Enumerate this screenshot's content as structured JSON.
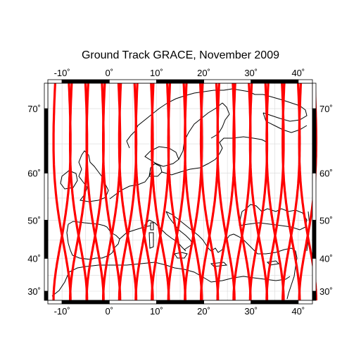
{
  "title": "Ground Track GRACE, November 2009",
  "map": {
    "projection": "mercator",
    "lon_range": [
      -13,
      43
    ],
    "lat_range": [
      27,
      73
    ],
    "lon_ticks": [
      {
        "value": -10,
        "label": "-10˚"
      },
      {
        "value": 0,
        "label": "0˚"
      },
      {
        "value": 10,
        "label": "10˚"
      },
      {
        "value": 20,
        "label": "20˚"
      },
      {
        "value": 30,
        "label": "30˚"
      },
      {
        "value": 40,
        "label": "40˚"
      }
    ],
    "lat_ticks": [
      {
        "value": 30,
        "label": "30˚"
      },
      {
        "value": 40,
        "label": "40˚"
      },
      {
        "value": 50,
        "label": "50˚"
      },
      {
        "value": 60,
        "label": "60˚"
      },
      {
        "value": 70,
        "label": "70˚"
      }
    ],
    "frame_style": "alternating black/white bars",
    "gridlines": true,
    "track_color": "#ff0000",
    "coast_color": "#000000",
    "ground_track_crossing_longitudes": [
      -10,
      -6.5,
      -3,
      0.5,
      3.9,
      7.4,
      10.8,
      14.3,
      17.8,
      21.2,
      24.7,
      28.1,
      31.6,
      35.1,
      38.5,
      42
    ]
  }
}
